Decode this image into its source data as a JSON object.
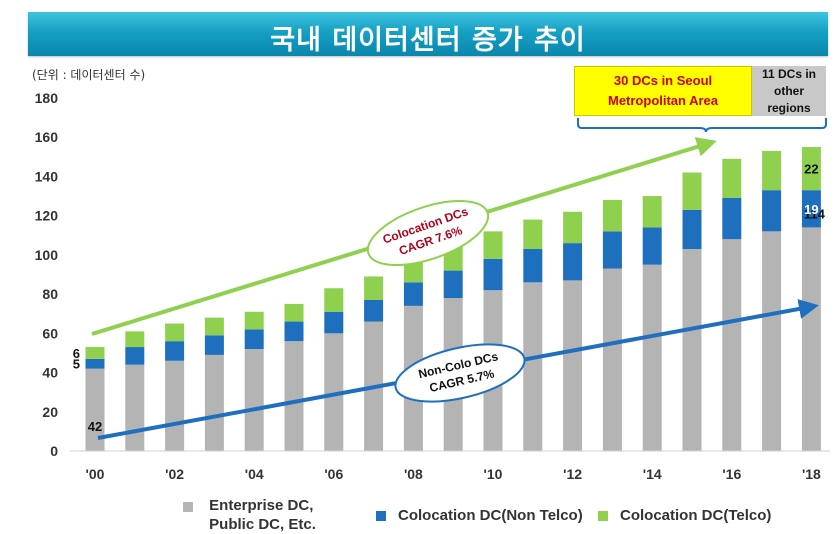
{
  "title": "국내 데이터센터 증가 추이",
  "unit_label": "(단위 : 데이터센터 수)",
  "colors": {
    "title_bg": "#14a0c4",
    "enterprise": "#b4b4b4",
    "colo_non_telco": "#1f6fbf",
    "colo_telco": "#8fd14f",
    "trend_colo": "#8fd14f",
    "trend_noncolo": "#1f6fbf"
  },
  "chart_data": {
    "type": "bar",
    "stacked": true,
    "x": [
      "'00",
      "'01",
      "'02",
      "'03",
      "'04",
      "'05",
      "'06",
      "'07",
      "'08",
      "'09",
      "'10",
      "'11",
      "'12",
      "'13",
      "'14",
      "'15",
      "'16",
      "'17",
      "'18"
    ],
    "x_tick_labels": [
      "'00",
      "'02",
      "'04",
      "'06",
      "'08",
      "'10",
      "'12",
      "'14",
      "'16",
      "'18"
    ],
    "y_ticks": [
      0,
      20,
      40,
      60,
      80,
      100,
      120,
      140,
      160,
      180
    ],
    "ylim": [
      0,
      180
    ],
    "series": [
      {
        "name": "Enterprise DC, Public DC, Etc.",
        "values": [
          42,
          44,
          46,
          49,
          52,
          56,
          60,
          66,
          74,
          78,
          82,
          86,
          87,
          93,
          95,
          103,
          108,
          112,
          114
        ]
      },
      {
        "name": "Colocation DC(Non Telco)",
        "values": [
          5,
          9,
          10,
          10,
          10,
          10,
          11,
          11,
          12,
          14,
          16,
          17,
          19,
          19,
          19,
          20,
          21,
          21,
          19
        ]
      },
      {
        "name": "Colocation DC(Telco)",
        "values": [
          6,
          8,
          9,
          9,
          9,
          9,
          12,
          12,
          13,
          13,
          14,
          15,
          16,
          16,
          16,
          19,
          20,
          20,
          22
        ]
      }
    ],
    "data_labels": {
      "first": {
        "enterprise": "42",
        "non_telco": "5",
        "telco": "6"
      },
      "last": {
        "enterprise": "114",
        "non_telco": "19",
        "telco": "22"
      }
    },
    "annotations": {
      "colo": {
        "line1": "Colocation DCs",
        "line2": "CAGR 7.6%"
      },
      "noncolo": {
        "line1": "Non-Colo DCs",
        "line2": "CAGR 5.7%"
      }
    },
    "grid": false,
    "legend_position": "bottom"
  },
  "callouts": {
    "seoul_line1": "30 DCs in Seoul",
    "seoul_line2": "Metropolitan Area",
    "other_line1": "11 DCs in",
    "other_line2": "other",
    "other_line3": "regions"
  },
  "legend": {
    "enterprise_line1": "Enterprise DC,",
    "enterprise_line2": "Public DC, Etc.",
    "non_telco": "Colocation DC(Non Telco)",
    "telco": "Colocation DC(Telco)"
  }
}
